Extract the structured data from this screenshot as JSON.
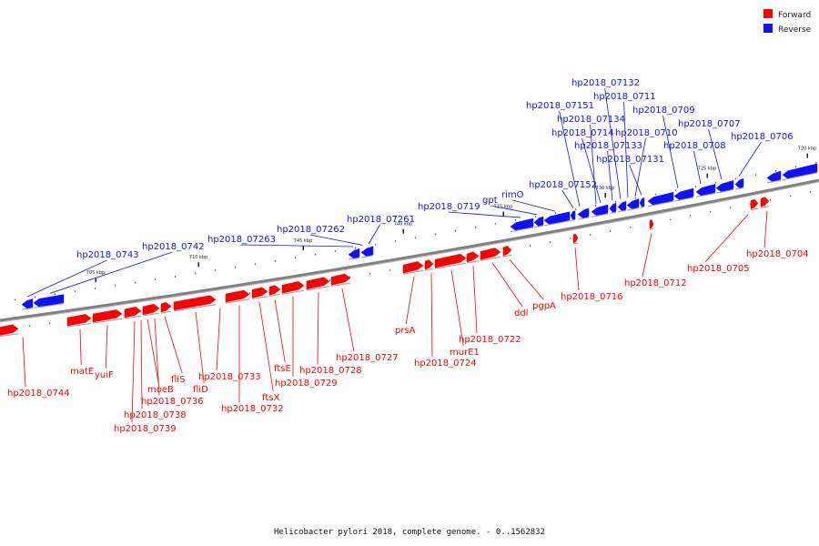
{
  "legend": {
    "forward": {
      "label": "Forward",
      "color": "#ff0000"
    },
    "reverse": {
      "label": "Reverse",
      "color": "#1010ff"
    }
  },
  "caption": "Helicobacter pylori 2018, complete genome. - 0..1562832",
  "ticks": [
    "705 kbp",
    "710 kbp",
    "715 kbp",
    "720 kbp",
    "725 kbp",
    "730 kbp",
    "735 kbp",
    "740 kbp",
    "745 kbp",
    "750 kbp",
    "755 kbp"
  ],
  "reverse_genes": [
    "hp2018_0743",
    "hp2018_0742",
    "hp2018_07263",
    "hp2018_07262",
    "hp2018_07261",
    "hp2018_0719",
    "gpt",
    "rimO",
    "hp2018_07152",
    "hp2018_07151",
    "hp2018_07134",
    "hp2018_0714",
    "hp2018_07133",
    "hp2018_07132",
    "hp2018_0711",
    "hp2018_0710",
    "hp2018_07131",
    "hp2018_0709",
    "hp2018_0708",
    "hp2018_0707",
    "hp2018_0706"
  ],
  "forward_genes": [
    "hp2018_0744",
    "matE",
    "yuiF",
    "moeB",
    "hp2018_0739",
    "hp2018_0738",
    "hp2018_0736",
    "fliS",
    "fliD",
    "hp2018_0733",
    "hp2018_0732",
    "ftsX",
    "ftsE",
    "hp2018_0729",
    "hp2018_0728",
    "hp2018_0727",
    "prsA",
    "hp2018_0724",
    "murE1",
    "hp2018_0722",
    "ddl",
    "pgpA",
    "hp2018_0716",
    "hp2018_0712",
    "hp2018_0705",
    "hp2018_0704"
  ]
}
